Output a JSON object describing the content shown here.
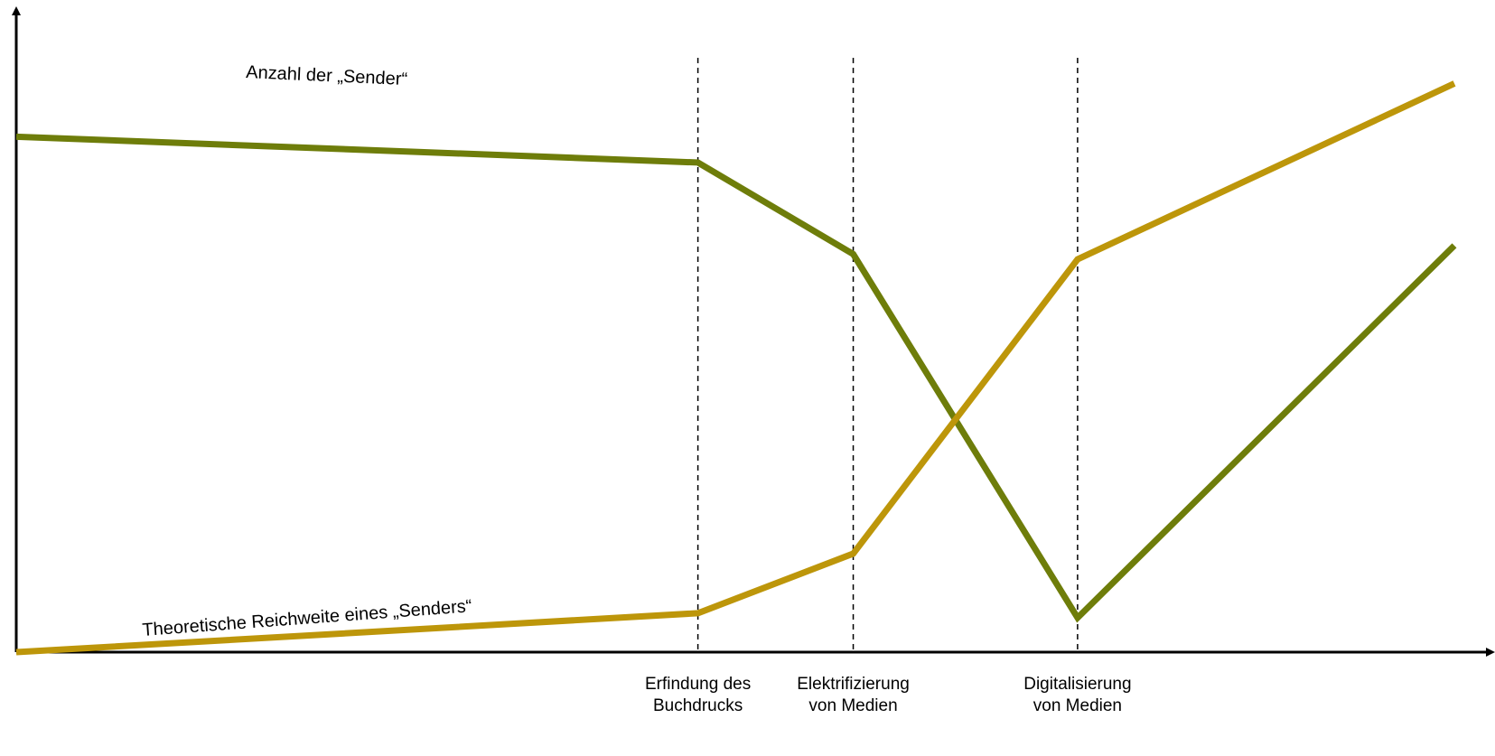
{
  "chart_data": {
    "type": "line",
    "title": "",
    "xlabel": "",
    "ylabel": "",
    "grid": false,
    "axis_ticks": false,
    "milestones": [
      {
        "label_lines": [
          "Erfindung des",
          "Buchdrucks"
        ],
        "x": 0.474
      },
      {
        "label_lines": [
          "Elektrifizierung",
          "von Medien"
        ],
        "x": 0.582
      },
      {
        "label_lines": [
          "Digitalisierung",
          "von Medien"
        ],
        "x": 0.738
      }
    ],
    "series": [
      {
        "name": "Anzahl der „Sender“",
        "color": "#6e7d0a",
        "points": [
          {
            "x": 0.0,
            "y": 0.9
          },
          {
            "x": 0.474,
            "y": 0.855
          },
          {
            "x": 0.582,
            "y": 0.695
          },
          {
            "x": 0.738,
            "y": 0.06
          },
          {
            "x": 1.0,
            "y": 0.71
          }
        ]
      },
      {
        "name": "Theoretische Reichweite eines „Senders“",
        "color": "#bd960a",
        "points": [
          {
            "x": 0.0,
            "y": 0.0
          },
          {
            "x": 0.474,
            "y": 0.068
          },
          {
            "x": 0.582,
            "y": 0.172
          },
          {
            "x": 0.738,
            "y": 0.686
          },
          {
            "x": 1.0,
            "y": 0.993
          }
        ]
      }
    ]
  }
}
